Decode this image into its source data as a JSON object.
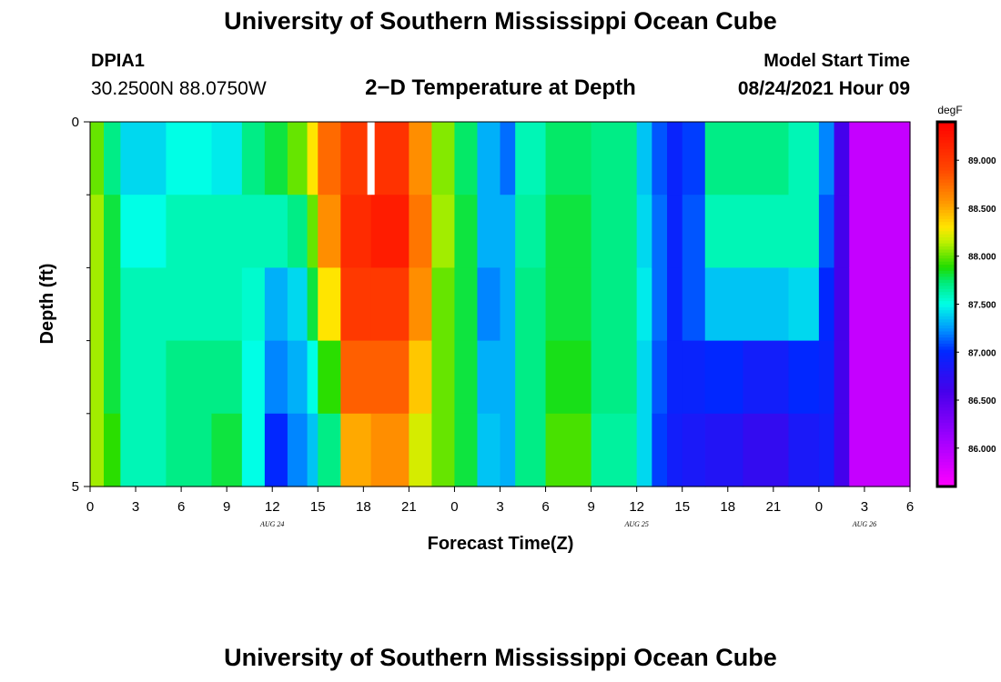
{
  "header": {
    "title": "University of Southern Mississippi Ocean Cube",
    "station_id": "DPIA1",
    "station_coords": "30.2500N  88.0750W",
    "plot_title": "2−D Temperature at Depth",
    "model_label": "Model Start Time",
    "model_time": "08/24/2021 Hour 09"
  },
  "footer": {
    "title": "University of Southern Mississippi Ocean Cube"
  },
  "chart_data": {
    "type": "heatmap",
    "title": "2−D Temperature at Depth",
    "xlabel": "Forecast Time(Z)",
    "ylabel": "Depth (ft)",
    "x_tick_labels": [
      "0",
      "3",
      "6",
      "9",
      "12",
      "15",
      "18",
      "21",
      "0",
      "3",
      "6",
      "9",
      "12",
      "15",
      "18",
      "21",
      "0",
      "3",
      "6"
    ],
    "date_labels": [
      {
        "text": "AUG  24",
        "at_tick": 4
      },
      {
        "text": "AUG  25",
        "at_tick": 12
      },
      {
        "text": "AUG  26",
        "at_tick": 17
      }
    ],
    "y_tick_labels": [
      "0",
      "5"
    ],
    "y_range": [
      0,
      5
    ],
    "x_range_hours": [
      0,
      54
    ],
    "colorbar": {
      "unit": "degF",
      "min": 85.6,
      "max": 89.4,
      "tick_labels": [
        "86.000",
        "86.500",
        "87.000",
        "87.500",
        "88.000",
        "88.500",
        "89.000"
      ],
      "tick_values": [
        86.0,
        86.5,
        87.0,
        87.5,
        88.0,
        88.5,
        89.0
      ]
    },
    "depth_levels": 5,
    "missing_cells": [
      {
        "hour": 18.5,
        "depth_index": 0
      }
    ],
    "segments": [
      {
        "hours": [
          0,
          0.9
        ],
        "temps": [
          88.0,
          88.1,
          88.1,
          88.1,
          88.1
        ]
      },
      {
        "hours": [
          0.9,
          2
        ],
        "temps": [
          87.7,
          87.8,
          87.8,
          87.8,
          87.9
        ]
      },
      {
        "hours": [
          2,
          5
        ],
        "temps": [
          87.4,
          87.5,
          87.6,
          87.6,
          87.6
        ]
      },
      {
        "hours": [
          5,
          8
        ],
        "temps": [
          87.5,
          87.6,
          87.6,
          87.7,
          87.7
        ]
      },
      {
        "hours": [
          8,
          10
        ],
        "temps": [
          87.45,
          87.6,
          87.6,
          87.7,
          87.8
        ]
      },
      {
        "hours": [
          10,
          11.5
        ],
        "temps": [
          87.7,
          87.6,
          87.55,
          87.5,
          87.5
        ]
      },
      {
        "hours": [
          11.5,
          13
        ],
        "temps": [
          87.8,
          87.6,
          87.3,
          87.2,
          87.0
        ]
      },
      {
        "hours": [
          13,
          14.3
        ],
        "temps": [
          88.0,
          87.7,
          87.4,
          87.3,
          87.2
        ]
      },
      {
        "hours": [
          14.3,
          15
        ],
        "temps": [
          88.3,
          88.0,
          87.8,
          87.5,
          87.35
        ]
      },
      {
        "hours": [
          15,
          16.5
        ],
        "temps": [
          88.75,
          88.6,
          88.3,
          87.9,
          87.7
        ]
      },
      {
        "hours": [
          16.5,
          18.5
        ],
        "temps": [
          89.0,
          89.1,
          89.0,
          88.8,
          88.5
        ]
      },
      {
        "hours": [
          18.5,
          21
        ],
        "temps": [
          89.05,
          89.2,
          89.0,
          88.8,
          88.6
        ]
      },
      {
        "hours": [
          21,
          22.5
        ],
        "temps": [
          88.6,
          88.7,
          88.6,
          88.4,
          88.2
        ]
      },
      {
        "hours": [
          22.5,
          24
        ],
        "temps": [
          88.05,
          88.1,
          88.0,
          88.0,
          88.0
        ]
      },
      {
        "hours": [
          24,
          25.5
        ],
        "temps": [
          87.75,
          87.8,
          87.8,
          87.8,
          87.8
        ]
      },
      {
        "hours": [
          25.5,
          27
        ],
        "temps": [
          87.3,
          87.3,
          87.2,
          87.3,
          87.35
        ]
      },
      {
        "hours": [
          27,
          28
        ],
        "temps": [
          87.15,
          87.3,
          87.3,
          87.3,
          87.3
        ]
      },
      {
        "hours": [
          28,
          30
        ],
        "temps": [
          87.6,
          87.65,
          87.7,
          87.7,
          87.7
        ]
      },
      {
        "hours": [
          30,
          33
        ],
        "temps": [
          87.75,
          87.8,
          87.8,
          87.85,
          87.95
        ]
      },
      {
        "hours": [
          33,
          36
        ],
        "temps": [
          87.7,
          87.7,
          87.7,
          87.7,
          87.65
        ]
      },
      {
        "hours": [
          36,
          37
        ],
        "temps": [
          87.35,
          87.4,
          87.45,
          87.4,
          87.4
        ]
      },
      {
        "hours": [
          37,
          38
        ],
        "temps": [
          87.1,
          87.15,
          87.15,
          87.1,
          87.05
        ]
      },
      {
        "hours": [
          38,
          39
        ],
        "temps": [
          86.95,
          86.95,
          86.95,
          86.95,
          86.9
        ]
      },
      {
        "hours": [
          39,
          40.5
        ],
        "temps": [
          87.05,
          87.1,
          87.1,
          86.95,
          86.85
        ]
      },
      {
        "hours": [
          40.5,
          43
        ],
        "temps": [
          87.7,
          87.6,
          87.35,
          87.0,
          86.8
        ]
      },
      {
        "hours": [
          43,
          46
        ],
        "temps": [
          87.7,
          87.6,
          87.35,
          86.9,
          86.7
        ]
      },
      {
        "hours": [
          46,
          48
        ],
        "temps": [
          87.6,
          87.6,
          87.4,
          87.0,
          86.85
        ]
      },
      {
        "hours": [
          48,
          49
        ],
        "temps": [
          87.2,
          87.1,
          87.0,
          86.95,
          86.9
        ]
      },
      {
        "hours": [
          49,
          50
        ],
        "temps": [
          86.6,
          86.6,
          86.6,
          86.6,
          86.6
        ]
      },
      {
        "hours": [
          50,
          54
        ],
        "temps": [
          85.9,
          85.9,
          85.9,
          85.9,
          85.9
        ]
      }
    ]
  }
}
